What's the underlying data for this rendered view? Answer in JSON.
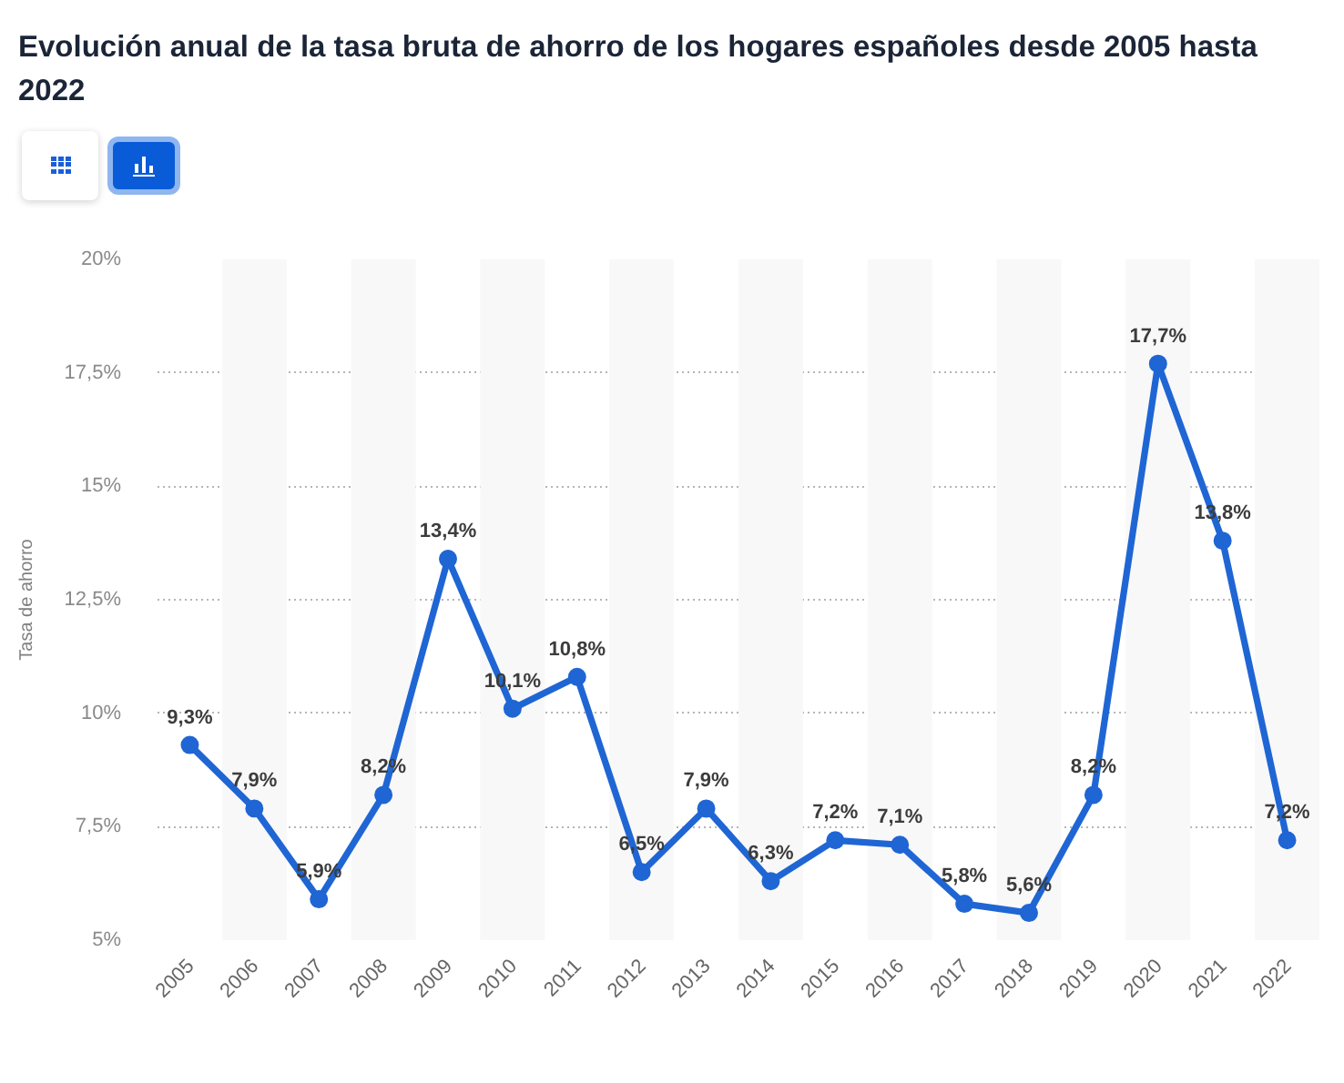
{
  "chart_data": {
    "type": "line",
    "title": "Evolución anual de la tasa bruta de ahorro de los hogares españoles desde 2005 hasta 2022",
    "ylabel": "Tasa de ahorro",
    "x": [
      2005,
      2006,
      2007,
      2008,
      2009,
      2010,
      2011,
      2012,
      2013,
      2014,
      2015,
      2016,
      2017,
      2018,
      2019,
      2020,
      2021,
      2022
    ],
    "values": [
      9.3,
      7.9,
      5.9,
      8.2,
      13.4,
      10.1,
      10.8,
      6.5,
      7.9,
      6.3,
      7.2,
      7.1,
      5.8,
      5.6,
      8.2,
      17.7,
      13.8,
      7.2
    ],
    "value_labels": [
      "9,3%",
      "7,9%",
      "5,9%",
      "8,2%",
      "13,4%",
      "10,1%",
      "10,8%",
      "6,5%",
      "7,9%",
      "6,3%",
      "7,2%",
      "7,1%",
      "5,8%",
      "5,6%",
      "8,2%",
      "17,7%",
      "13,8%",
      "7,2%"
    ],
    "color": "#1f66d4",
    "marker": "circle",
    "line_style": "solid",
    "xlim": [
      2004.5,
      2022.5
    ],
    "xticks": [
      2005,
      2006,
      2007,
      2008,
      2009,
      2010,
      2011,
      2012,
      2013,
      2014,
      2015,
      2016,
      2017,
      2018,
      2019,
      2020,
      2021,
      2022
    ],
    "ylim": [
      5,
      20
    ],
    "yticks": [
      {
        "value": 5,
        "label": "5%"
      },
      {
        "value": 7.5,
        "label": "7,5%"
      },
      {
        "value": 10,
        "label": "10%"
      },
      {
        "value": 12.5,
        "label": "12,5%"
      },
      {
        "value": 15,
        "label": "15%"
      },
      {
        "value": 17.5,
        "label": "17,5%"
      },
      {
        "value": 20,
        "label": "20%"
      }
    ],
    "grid": "y",
    "bands": [
      {
        "axis": "x",
        "from": 2005.5,
        "to": 2006.5,
        "color": "#f8f8f8"
      },
      {
        "axis": "x",
        "from": 2007.5,
        "to": 2008.5,
        "color": "#f8f8f8"
      },
      {
        "axis": "x",
        "from": 2009.5,
        "to": 2010.5,
        "color": "#f8f8f8"
      },
      {
        "axis": "x",
        "from": 2011.5,
        "to": 2012.5,
        "color": "#f8f8f8"
      },
      {
        "axis": "x",
        "from": 2013.5,
        "to": 2014.5,
        "color": "#f8f8f8"
      },
      {
        "axis": "x",
        "from": 2015.5,
        "to": 2016.5,
        "color": "#f8f8f8"
      },
      {
        "axis": "x",
        "from": 2017.5,
        "to": 2018.5,
        "color": "#f8f8f8"
      },
      {
        "axis": "x",
        "from": 2019.5,
        "to": 2020.5,
        "color": "#f8f8f8"
      },
      {
        "axis": "x",
        "from": 2021.5,
        "to": 2022.5,
        "color": "#f8f8f8"
      }
    ]
  }
}
